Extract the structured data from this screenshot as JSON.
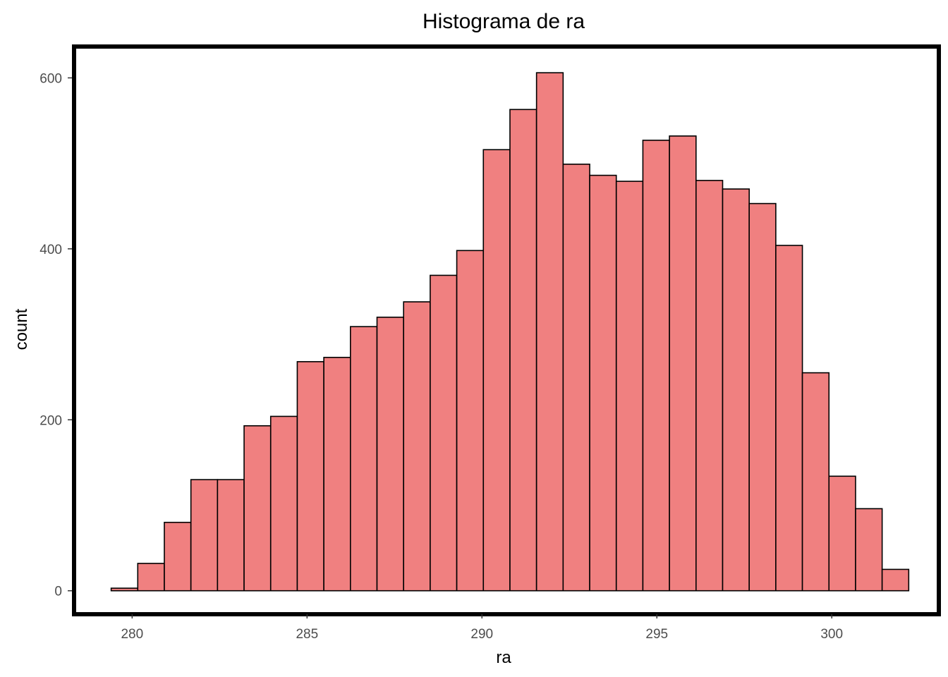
{
  "chart_data": {
    "type": "bar",
    "title": "Histograma de ra",
    "xlabel": "ra",
    "ylabel": "count",
    "xlim": [
      278.4,
      303.0
    ],
    "ylim": [
      -25,
      635
    ],
    "x_ticks": [
      280,
      285,
      290,
      295,
      300
    ],
    "y_ticks": [
      0,
      200,
      400,
      600
    ],
    "grid": false,
    "legend": "none",
    "bar_fill": "#f08080",
    "bar_stroke": "#000000",
    "bins": [
      {
        "x0": 279.4,
        "x1": 280.16,
        "value": 3
      },
      {
        "x0": 280.16,
        "x1": 280.92,
        "value": 32
      },
      {
        "x0": 280.92,
        "x1": 281.68,
        "value": 80
      },
      {
        "x0": 281.68,
        "x1": 282.44,
        "value": 130
      },
      {
        "x0": 282.44,
        "x1": 283.2,
        "value": 130
      },
      {
        "x0": 283.2,
        "x1": 283.96,
        "value": 193
      },
      {
        "x0": 283.96,
        "x1": 284.72,
        "value": 204
      },
      {
        "x0": 284.72,
        "x1": 285.48,
        "value": 268
      },
      {
        "x0": 285.48,
        "x1": 286.24,
        "value": 273
      },
      {
        "x0": 286.24,
        "x1": 287.0,
        "value": 309
      },
      {
        "x0": 287.0,
        "x1": 287.76,
        "value": 320
      },
      {
        "x0": 287.76,
        "x1": 288.52,
        "value": 338
      },
      {
        "x0": 288.52,
        "x1": 289.28,
        "value": 369
      },
      {
        "x0": 289.28,
        "x1": 290.04,
        "value": 398
      },
      {
        "x0": 290.04,
        "x1": 290.8,
        "value": 516
      },
      {
        "x0": 290.8,
        "x1": 291.56,
        "value": 563
      },
      {
        "x0": 291.56,
        "x1": 292.32,
        "value": 606
      },
      {
        "x0": 292.32,
        "x1": 293.08,
        "value": 499
      },
      {
        "x0": 293.08,
        "x1": 293.84,
        "value": 486
      },
      {
        "x0": 293.84,
        "x1": 294.6,
        "value": 479
      },
      {
        "x0": 294.6,
        "x1": 295.36,
        "value": 527
      },
      {
        "x0": 295.36,
        "x1": 296.12,
        "value": 532
      },
      {
        "x0": 296.12,
        "x1": 296.88,
        "value": 480
      },
      {
        "x0": 296.88,
        "x1": 297.64,
        "value": 470
      },
      {
        "x0": 297.64,
        "x1": 298.4,
        "value": 453
      },
      {
        "x0": 298.4,
        "x1": 299.16,
        "value": 404
      },
      {
        "x0": 299.16,
        "x1": 299.92,
        "value": 255
      },
      {
        "x0": 299.92,
        "x1": 300.68,
        "value": 134
      },
      {
        "x0": 300.68,
        "x1": 301.44,
        "value": 96
      },
      {
        "x0": 301.44,
        "x1": 302.2,
        "value": 25
      }
    ]
  }
}
